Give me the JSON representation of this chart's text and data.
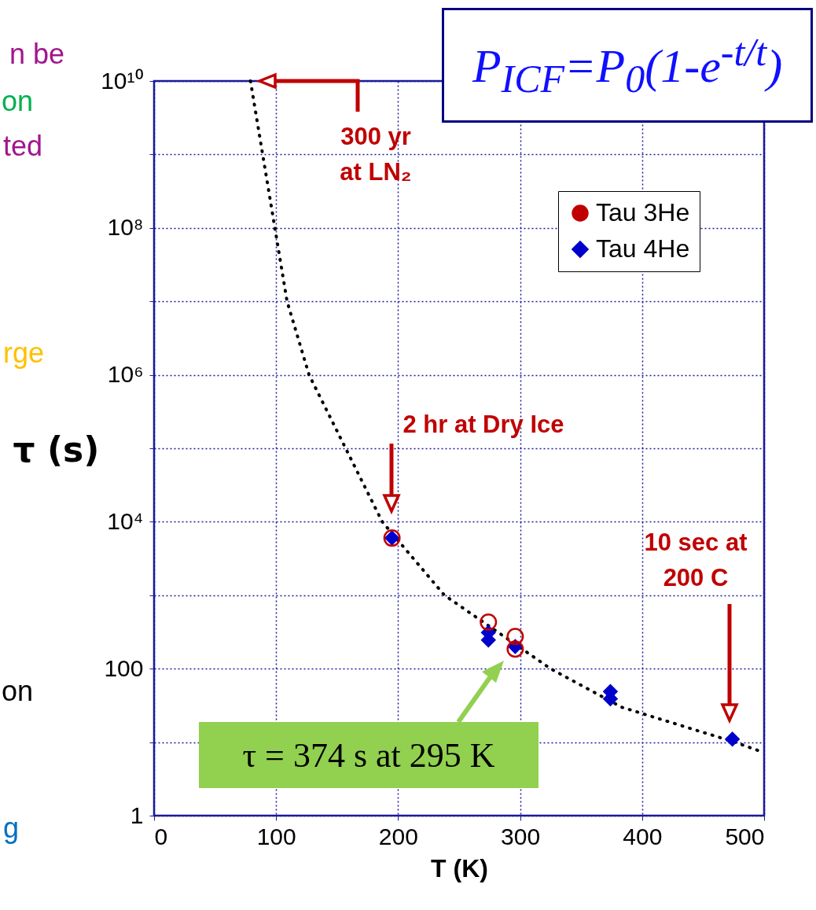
{
  "chart_data": {
    "type": "scatter",
    "xlabel": "T (K)",
    "ylabel": "τ (s)",
    "log": "y",
    "grid": true,
    "legend": "top right",
    "xlim": [
      0,
      500
    ],
    "xticks": [
      0,
      100,
      200,
      300,
      400,
      500
    ],
    "ylim": [
      1,
      10000000000
    ],
    "yticks": [
      1,
      {
        "value": 10,
        "label": null
      },
      100,
      {
        "value": 1000,
        "label": null
      },
      {
        "value": 10000,
        "label": "10⁴"
      },
      {
        "value": 100000,
        "label": null
      },
      {
        "value": 1000000,
        "label": "10⁶"
      },
      {
        "value": 10000000,
        "label": null
      },
      {
        "value": 100000000,
        "label": "10⁸"
      },
      {
        "value": 1000000000,
        "label": null
      },
      {
        "value": 10000000000,
        "label": "10¹⁰"
      }
    ],
    "series": [
      {
        "name": "Tau 3He",
        "color": "#c00000",
        "marker": "circle",
        "x": [
          195,
          274,
          296,
          296
        ],
        "values": [
          6000,
          430,
          275,
          185
        ]
      },
      {
        "name": "Tau 4He",
        "color": "#0000cc",
        "marker": "diamond",
        "x": [
          195,
          274,
          274,
          296,
          374,
          374,
          474
        ],
        "values": [
          6000,
          310,
          245,
          200,
          49,
          39,
          11
        ]
      },
      {
        "type": "line",
        "color": "#000000",
        "line_style": "dotted",
        "x": [
          79,
          89,
          99,
          109,
          127,
          157,
          187,
          238,
          325,
          383,
          476,
          496
        ],
        "values": [
          10000000000,
          1000000000,
          100000000,
          10000000,
          1000000,
          100000,
          10000,
          1000,
          100,
          30,
          10,
          7.6
        ]
      }
    ],
    "annotations": [
      "P$_{ICF}$=P$_{0}$(1-e$^{-t/t}$)",
      "300 yr at LN₂",
      "2 hr at Dry Ice",
      "10 sec at 200 C",
      "τ = 374 s at 295 K",
      "n be",
      "on",
      "ted",
      "rge",
      "on",
      "g"
    ]
  }
}
